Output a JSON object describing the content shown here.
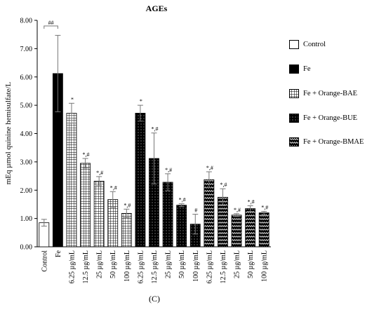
{
  "chart_data": {
    "type": "bar",
    "title": "AGEs",
    "ylabel": "mEq µmol quinine hemisulfate/L",
    "xlabel": "",
    "ylim": [
      0,
      8
    ],
    "yticks": [
      "0.00",
      "1.00",
      "2.00",
      "3.00",
      "4.00",
      "5.00",
      "6.00",
      "7.00",
      "8.00"
    ],
    "grid": false,
    "legend_position": "right",
    "bars": [
      {
        "label": "Control",
        "group": "Control",
        "value": 0.85,
        "error": 0.12,
        "annotation": ""
      },
      {
        "label": "Fe",
        "group": "Fe",
        "value": 6.12,
        "error": 1.35,
        "annotation": ""
      },
      {
        "label": "6.25 µg/mL",
        "group": "Fe + Orange-BAE",
        "value": 4.72,
        "error": 0.35,
        "annotation": "*"
      },
      {
        "label": "12.5 µg/mL",
        "group": "Fe + Orange-BAE",
        "value": 2.95,
        "error": 0.17,
        "annotation": "*,#"
      },
      {
        "label": "25 µg/mL",
        "group": "Fe + Orange-BAE",
        "value": 2.32,
        "error": 0.16,
        "annotation": "*,#"
      },
      {
        "label": "50 µg/mL",
        "group": "Fe + Orange-BAE",
        "value": 1.67,
        "error": 0.28,
        "annotation": "*,#"
      },
      {
        "label": "100 µg/mL",
        "group": "Fe + Orange-BAE",
        "value": 1.18,
        "error": 0.15,
        "annotation": "*,#"
      },
      {
        "label": "6.25 µg/mL",
        "group": "Fe + Orange-BUE",
        "value": 4.72,
        "error": 0.28,
        "annotation": "*"
      },
      {
        "label": "12.5 µg/mL",
        "group": "Fe + Orange-BUE",
        "value": 3.12,
        "error": 0.9,
        "annotation": "*,#"
      },
      {
        "label": "25 µg/mL",
        "group": "Fe + Orange-BUE",
        "value": 2.28,
        "error": 0.3,
        "annotation": "*,#"
      },
      {
        "label": "50 µg/mL",
        "group": "Fe + Orange-BUE",
        "value": 1.47,
        "error": 0.05,
        "annotation": "*,#"
      },
      {
        "label": "100 µg/mL",
        "group": "Fe + Orange-BUE",
        "value": 0.8,
        "error": 0.35,
        "annotation": "#"
      },
      {
        "label": "6.25 µg/mL",
        "group": "Fe + Orange-BMAE",
        "value": 2.37,
        "error": 0.28,
        "annotation": "*,#"
      },
      {
        "label": "12.5 µg/mL",
        "group": "Fe + Orange-BMAE",
        "value": 1.75,
        "error": 0.3,
        "annotation": "*,#"
      },
      {
        "label": "25 µg/mL",
        "group": "Fe + Orange-BMAE",
        "value": 1.12,
        "error": 0.05,
        "annotation": "*,#"
      },
      {
        "label": "50 µg/mL",
        "group": "Fe + Orange-BMAE",
        "value": 1.35,
        "error": 0.1,
        "annotation": "*,#"
      },
      {
        "label": "100 µg/mL",
        "group": "Fe + Orange-BMAE",
        "value": 1.2,
        "error": 0.05,
        "annotation": "*,#"
      }
    ],
    "bracket": {
      "from": "Control",
      "to": "Fe",
      "annotation": "##"
    },
    "legend": [
      {
        "label": "Control",
        "pattern": "white"
      },
      {
        "label": "Fe",
        "pattern": "black"
      },
      {
        "label": "Fe + Orange-BAE",
        "pattern": "grid"
      },
      {
        "label": "Fe + Orange-BUE",
        "pattern": "dots"
      },
      {
        "label": "Fe + Orange-BMAE",
        "pattern": "zigzag"
      }
    ]
  },
  "caption": "(C)"
}
